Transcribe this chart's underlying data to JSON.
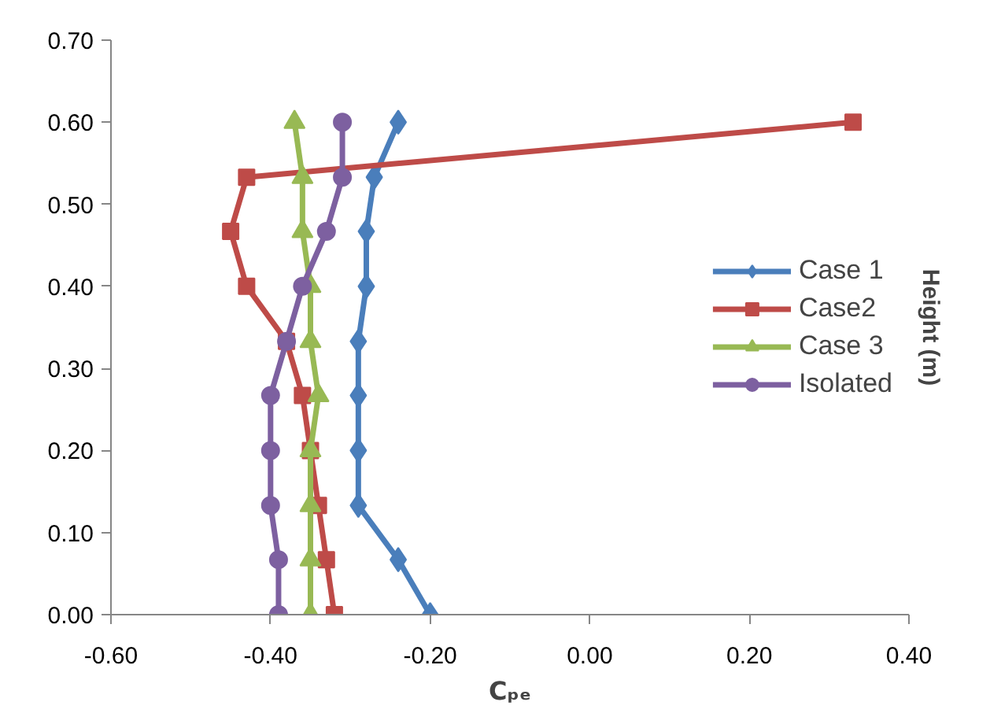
{
  "chart_data": {
    "type": "line",
    "xlabel": "Cₚₑ",
    "ylabel": "Height (m)",
    "xlim": [
      -0.6,
      0.4
    ],
    "xticks": [
      {
        "value": -0.6,
        "label": "-0.60"
      },
      {
        "value": -0.4,
        "label": "-0.40"
      },
      {
        "value": -0.2,
        "label": "-0.20"
      },
      {
        "value": 0,
        "label": "0.00"
      },
      {
        "value": 0.2,
        "label": "0.20"
      },
      {
        "value": 0.4,
        "label": "0.40"
      }
    ],
    "ylim": [
      0,
      0.7
    ],
    "yticks": [
      {
        "value": 0,
        "label": "0.00"
      },
      {
        "value": 0.1,
        "label": "0.10"
      },
      {
        "value": 0.2,
        "label": "0.20"
      },
      {
        "value": 0.3,
        "label": "0.30"
      },
      {
        "value": 0.4,
        "label": "0.40"
      },
      {
        "value": 0.5,
        "label": "0.50"
      },
      {
        "value": 0.6,
        "label": "0.60"
      },
      {
        "value": 0.7,
        "label": "0.70"
      }
    ],
    "grid": false,
    "legend": "right",
    "series": [
      {
        "name": "Case 1",
        "color": "#4a7ebb",
        "marker": "diamond",
        "x": [
          -0.2,
          -0.24,
          -0.29,
          -0.29,
          -0.29,
          -0.29,
          -0.28,
          -0.28,
          -0.27,
          -0.24
        ],
        "values": [
          0,
          0.067,
          0.133,
          0.2,
          0.267,
          0.333,
          0.4,
          0.467,
          0.533,
          0.6
        ]
      },
      {
        "name": "Case2",
        "color": "#be4b48",
        "marker": "square",
        "x": [
          -0.32,
          -0.33,
          -0.34,
          -0.35,
          -0.36,
          -0.38,
          -0.43,
          -0.45,
          -0.43,
          0.33
        ],
        "values": [
          0,
          0.067,
          0.133,
          0.2,
          0.267,
          0.333,
          0.4,
          0.467,
          0.533,
          0.6
        ]
      },
      {
        "name": "Case 3",
        "color": "#98b954",
        "marker": "triangle",
        "x": [
          -0.35,
          -0.35,
          -0.35,
          -0.35,
          -0.34,
          -0.35,
          -0.35,
          -0.36,
          -0.36,
          -0.37
        ],
        "values": [
          0,
          0.067,
          0.133,
          0.2,
          0.267,
          0.333,
          0.4,
          0.467,
          0.533,
          0.6
        ]
      },
      {
        "name": "Isolated",
        "color": "#7d60a0",
        "marker": "circle",
        "x": [
          -0.39,
          -0.39,
          -0.4,
          -0.4,
          -0.4,
          -0.38,
          -0.36,
          -0.33,
          -0.31,
          -0.31
        ],
        "values": [
          0,
          0.067,
          0.133,
          0.2,
          0.267,
          0.333,
          0.4,
          0.467,
          0.533,
          0.6
        ]
      }
    ]
  }
}
